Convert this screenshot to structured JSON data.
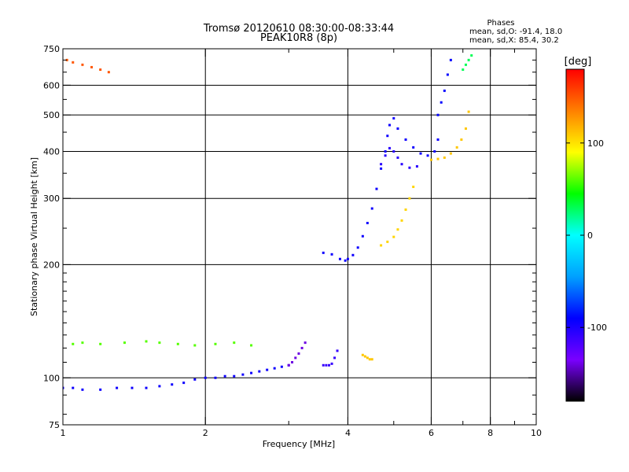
{
  "chart_data": {
    "type": "scatter",
    "title": "Tromsø 20120610 08:30:00-08:33:44",
    "subtitle": "PEAK10R8 (8p)",
    "xlabel": "Frequency [MHz]",
    "ylabel": "Stationary phase Virtual Height [km]",
    "x_scale": "log",
    "y_scale": "log",
    "xlim": [
      1,
      10
    ],
    "ylim": [
      75,
      750
    ],
    "x_ticks": [
      1,
      2,
      4,
      6,
      8,
      10
    ],
    "y_ticks": [
      75,
      100,
      200,
      300,
      400,
      500,
      600,
      750
    ],
    "grid": true,
    "phases": {
      "title": "Phases",
      "o_line": "mean, sd,O: -91.4, 18.0",
      "x_line": "mean, sd,X: 85.4, 30.2"
    },
    "colorbar": {
      "label": "[deg]",
      "range": [
        -180,
        180
      ],
      "ticks": [
        -100,
        0,
        100
      ],
      "stops": [
        "#000000",
        "#7a00ff",
        "#0000ff",
        "#00a0ff",
        "#00ffff",
        "#00ff00",
        "#ffff00",
        "#ff8000",
        "#ff0000"
      ]
    },
    "series": [
      {
        "x": [
          1.0,
          1.05,
          1.1,
          1.2,
          1.3,
          1.4,
          1.5,
          1.6,
          1.7,
          1.8,
          1.9,
          2.0,
          2.1,
          2.2,
          2.3,
          2.4,
          2.5,
          2.6,
          2.7,
          2.8,
          2.9,
          3.0
        ],
        "y": [
          94,
          94,
          93,
          93,
          94,
          94,
          94,
          95,
          96,
          97,
          99,
          100,
          100,
          101,
          101,
          102,
          103,
          104,
          105,
          106,
          107,
          108
        ],
        "phase": -95
      },
      {
        "x": [
          3.0,
          3.05,
          3.1,
          3.15,
          3.2,
          3.25
        ],
        "y": [
          108,
          110,
          113,
          116,
          120,
          124
        ],
        "phase": -140
      },
      {
        "x": [
          3.55,
          3.6,
          3.65,
          3.7,
          3.75,
          3.8
        ],
        "y": [
          108,
          108,
          108,
          109,
          113,
          118
        ],
        "phase": -110
      },
      {
        "x": [
          4.3,
          4.35,
          4.4,
          4.45,
          4.5
        ],
        "y": [
          115,
          114,
          113,
          112,
          112
        ],
        "phase": 110
      },
      {
        "x": [
          3.55,
          3.7,
          3.85,
          3.95,
          4.0,
          4.1,
          4.2,
          4.3,
          4.4,
          4.5,
          4.6,
          4.7,
          4.8,
          4.85,
          4.9,
          5.0,
          5.1,
          5.3,
          5.5,
          5.7,
          5.9,
          6.1,
          6.2
        ],
        "y": [
          215,
          213,
          207,
          205,
          207,
          212,
          222,
          238,
          258,
          282,
          318,
          360,
          400,
          440,
          470,
          490,
          460,
          430,
          410,
          395,
          390,
          400,
          430
        ],
        "phase": -95
      },
      {
        "x": [
          4.7,
          4.8,
          4.9,
          5.0,
          5.1,
          5.2,
          5.4,
          5.6
        ],
        "y": [
          370,
          390,
          408,
          400,
          385,
          370,
          362,
          365
        ],
        "phase": -105
      },
      {
        "x": [
          6.2,
          6.3,
          6.4,
          6.5,
          6.6
        ],
        "y": [
          500,
          540,
          580,
          640,
          700
        ],
        "phase": -90
      },
      {
        "x": [
          4.7,
          4.85,
          5.0,
          5.1,
          5.2,
          5.3,
          5.4,
          5.5
        ],
        "y": [
          225,
          230,
          237,
          248,
          262,
          280,
          300,
          322
        ],
        "phase": 105
      },
      {
        "x": [
          6.0,
          6.2,
          6.4,
          6.6,
          6.8,
          6.95,
          7.1,
          7.2
        ],
        "y": [
          380,
          382,
          385,
          395,
          410,
          430,
          460,
          510
        ],
        "phase": 110
      },
      {
        "x": [
          1.05,
          1.1,
          1.2,
          1.35,
          1.5,
          1.6,
          1.75,
          1.9,
          2.1,
          2.3,
          2.5
        ],
        "y": [
          123,
          124,
          123,
          124,
          125,
          124,
          123,
          122,
          123,
          124,
          122
        ],
        "phase": 60
      },
      {
        "x": [
          1.02,
          1.05,
          1.1,
          1.15,
          1.2,
          1.25
        ],
        "y": [
          700,
          690,
          680,
          670,
          660,
          650
        ],
        "phase": 150
      },
      {
        "x": [
          7.0,
          7.1,
          7.2,
          7.3
        ],
        "y": [
          660,
          680,
          700,
          720
        ],
        "phase": 30
      }
    ]
  }
}
